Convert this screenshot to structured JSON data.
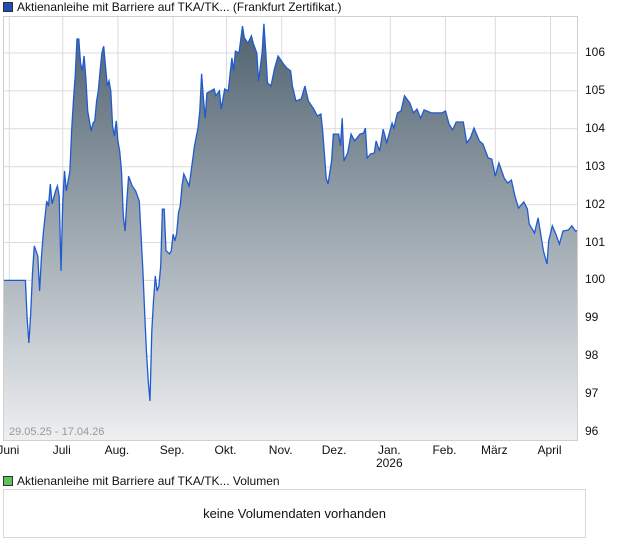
{
  "legend_price": {
    "label": "Aktienanleihe mit Barriere auf TKA/TK... (Frankfurt Zertifikat.)",
    "color": "#1f4fb5"
  },
  "legend_volume": {
    "label": "Aktienanleihe mit Barriere auf TKA/TK... Volumen",
    "color": "#5cc25c"
  },
  "volume_message": "keine Volumendaten vorhanden",
  "chart_data": {
    "type": "area",
    "range_label": "29.05.25 - 17.04.26",
    "line_color": "#1f5bd0",
    "fill_top_color": "#4f6270",
    "fill_bottom_color": "#eef0f2",
    "grid": true,
    "ylim": [
      96,
      106
    ],
    "y_ticks": [
      "96",
      "97",
      "98",
      "99",
      "100",
      "101",
      "102",
      "103",
      "104",
      "105",
      "106"
    ],
    "x_ticks": [
      {
        "label": "Juni",
        "date": "2025-06-01"
      },
      {
        "label": "Juli",
        "date": "2025-07-01"
      },
      {
        "label": "Aug.",
        "date": "2025-08-01"
      },
      {
        "label": "Sep.",
        "date": "2025-09-01"
      },
      {
        "label": "Okt.",
        "date": "2025-10-01"
      },
      {
        "label": "Nov.",
        "date": "2025-11-01"
      },
      {
        "label": "Dez.",
        "date": "2025-12-01"
      },
      {
        "label": "Jan.",
        "sublabel": "2026",
        "date": "2026-01-01"
      },
      {
        "label": "Feb.",
        "date": "2026-02-01"
      },
      {
        "label": "März",
        "date": "2026-03-01"
      },
      {
        "label": "April",
        "date": "2026-04-01"
      }
    ],
    "xlim": [
      "2025-05-29",
      "2026-04-17"
    ],
    "dates": [
      "2025-05-29",
      "2025-06-10",
      "2025-06-11",
      "2025-06-12",
      "2025-06-13",
      "2025-06-14",
      "2025-06-15",
      "2025-06-17",
      "2025-06-18",
      "2025-06-19",
      "2025-06-20",
      "2025-06-22",
      "2025-06-23",
      "2025-06-24",
      "2025-06-25",
      "2025-06-27",
      "2025-06-28",
      "2025-06-29",
      "2025-06-30",
      "2025-07-01",
      "2025-07-02",
      "2025-07-03",
      "2025-07-05",
      "2025-07-06",
      "2025-07-07",
      "2025-07-08",
      "2025-07-09",
      "2025-07-10",
      "2025-07-11",
      "2025-07-12",
      "2025-07-13",
      "2025-07-14",
      "2025-07-15",
      "2025-07-16",
      "2025-07-17",
      "2025-07-18",
      "2025-07-19",
      "2025-07-20",
      "2025-07-21",
      "2025-07-22",
      "2025-07-23",
      "2025-07-24",
      "2025-07-25",
      "2025-07-26",
      "2025-07-27",
      "2025-07-28",
      "2025-07-29",
      "2025-07-30",
      "2025-07-31",
      "2025-08-01",
      "2025-08-02",
      "2025-08-03",
      "2025-08-04",
      "2025-08-05",
      "2025-08-06",
      "2025-08-07",
      "2025-08-09",
      "2025-08-11",
      "2025-08-13",
      "2025-08-15",
      "2025-08-16",
      "2025-08-17",
      "2025-08-18",
      "2025-08-19",
      "2025-08-20",
      "2025-08-21",
      "2025-08-22",
      "2025-08-23",
      "2025-08-24",
      "2025-08-25",
      "2025-08-26",
      "2025-08-27",
      "2025-08-28",
      "2025-08-30",
      "2025-08-31",
      "2025-09-01",
      "2025-09-02",
      "2025-09-03",
      "2025-09-04",
      "2025-09-05",
      "2025-09-06",
      "2025-09-07",
      "2025-09-10",
      "2025-09-11",
      "2025-09-13",
      "2025-09-15",
      "2025-09-16",
      "2025-09-17",
      "2025-09-18",
      "2025-09-19",
      "2025-09-20",
      "2025-09-24",
      "2025-09-25",
      "2025-09-27",
      "2025-09-28",
      "2025-09-30",
      "2025-10-02",
      "2025-10-03",
      "2025-10-04",
      "2025-10-05",
      "2025-10-06",
      "2025-10-08",
      "2025-10-10",
      "2025-10-11",
      "2025-10-13",
      "2025-10-15",
      "2025-10-16",
      "2025-10-18",
      "2025-10-19",
      "2025-10-21",
      "2025-10-22",
      "2025-10-23",
      "2025-10-24",
      "2025-10-26",
      "2025-10-28",
      "2025-10-30",
      "2025-11-02",
      "2025-11-04",
      "2025-11-06",
      "2025-11-07",
      "2025-11-09",
      "2025-11-12",
      "2025-11-14",
      "2025-11-16",
      "2025-11-19",
      "2025-11-21",
      "2025-11-23",
      "2025-11-24",
      "2025-11-26",
      "2025-11-27",
      "2025-11-29",
      "2025-11-30",
      "2025-12-03",
      "2025-12-04",
      "2025-12-05",
      "2025-12-06",
      "2025-12-08",
      "2025-12-10",
      "2025-12-12",
      "2025-12-15",
      "2025-12-17",
      "2025-12-18",
      "2025-12-19",
      "2025-12-21",
      "2025-12-23",
      "2025-12-24",
      "2025-12-26",
      "2025-12-28",
      "2025-12-30",
      "2026-01-02",
      "2026-01-03",
      "2026-01-05",
      "2026-01-07",
      "2026-01-09",
      "2026-01-12",
      "2026-01-14",
      "2026-01-16",
      "2026-01-18",
      "2026-01-20",
      "2026-01-24",
      "2026-01-30",
      "2026-02-01",
      "2026-02-03",
      "2026-02-05",
      "2026-02-07",
      "2026-02-11",
      "2026-02-13",
      "2026-02-15",
      "2026-02-17",
      "2026-02-20",
      "2026-02-22",
      "2026-02-25",
      "2026-02-27",
      "2026-03-01",
      "2026-03-03",
      "2026-03-06",
      "2026-03-08",
      "2026-03-10",
      "2026-03-12",
      "2026-03-14",
      "2026-03-17",
      "2026-03-19",
      "2026-03-20",
      "2026-03-23",
      "2026-03-25",
      "2026-03-28",
      "2026-03-30",
      "2026-03-31",
      "2026-04-02",
      "2026-04-04",
      "2026-04-06",
      "2026-04-08",
      "2026-04-11",
      "2026-04-13",
      "2026-04-15",
      "2026-04-17"
    ],
    "values": [
      100.0,
      100.0,
      99.01,
      98.35,
      99.11,
      100.2,
      100.91,
      100.64,
      99.72,
      100.59,
      101.22,
      102.09,
      101.96,
      102.54,
      102.02,
      102.36,
      102.49,
      102.23,
      100.25,
      102.02,
      102.89,
      102.36,
      102.89,
      103.94,
      104.73,
      105.39,
      106.37,
      106.37,
      105.74,
      105.53,
      105.92,
      105.31,
      104.47,
      104.21,
      103.94,
      104.15,
      104.21,
      104.73,
      105.0,
      105.53,
      106.0,
      106.18,
      105.66,
      105.13,
      105.26,
      105.0,
      104.07,
      103.81,
      104.21,
      103.68,
      103.41,
      102.89,
      101.7,
      101.3,
      102.09,
      102.75,
      102.49,
      102.36,
      102.09,
      100.25,
      99.19,
      98.14,
      97.35,
      96.82,
      98.66,
      99.46,
      100.12,
      99.72,
      99.85,
      100.38,
      101.88,
      101.88,
      100.78,
      100.7,
      100.78,
      101.22,
      101.04,
      101.25,
      101.78,
      101.96,
      102.49,
      102.81,
      102.49,
      102.83,
      103.55,
      104.02,
      104.47,
      105.45,
      104.81,
      104.28,
      104.94,
      105.05,
      104.87,
      105.0,
      104.52,
      105.05,
      105.0,
      105.45,
      105.87,
      105.53,
      106.05,
      106.0,
      106.71,
      106.4,
      106.26,
      106.45,
      106.26,
      106.0,
      105.26,
      106.0,
      106.77,
      106.05,
      105.21,
      105.13,
      105.6,
      105.92,
      105.71,
      105.6,
      105.53,
      105.13,
      104.73,
      104.79,
      105.13,
      104.73,
      104.52,
      104.34,
      104.39,
      103.94,
      102.7,
      102.54,
      103.15,
      103.86,
      103.86,
      103.55,
      104.28,
      103.15,
      103.36,
      103.86,
      103.68,
      103.86,
      103.89,
      104.02,
      103.23,
      103.34,
      103.36,
      103.68,
      103.41,
      103.99,
      103.63,
      104.15,
      104.02,
      104.42,
      104.47,
      104.87,
      104.68,
      104.42,
      104.52,
      104.28,
      104.5,
      104.42,
      104.42,
      104.47,
      104.13,
      103.97,
      104.18,
      104.18,
      103.63,
      103.76,
      104.02,
      103.68,
      103.6,
      103.23,
      103.2,
      102.75,
      103.1,
      102.7,
      102.57,
      102.65,
      102.23,
      101.91,
      102.07,
      101.88,
      101.49,
      101.25,
      101.65,
      100.78,
      100.43,
      101.04,
      101.44,
      101.22,
      100.96,
      101.3,
      101.33,
      101.44,
      101.3,
      101.33
    ]
  }
}
